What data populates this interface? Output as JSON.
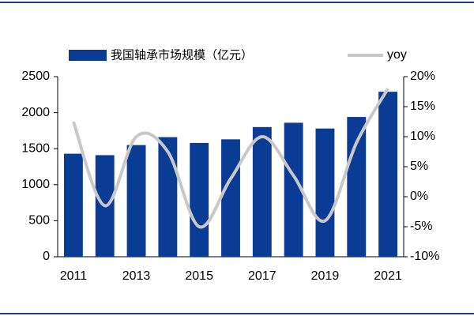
{
  "chart_data": {
    "type": "bar-line",
    "categories": [
      "2011",
      null,
      "2013",
      null,
      "2015",
      null,
      "2017",
      null,
      "2019",
      null,
      "2021"
    ],
    "series": [
      {
        "name": "我国轴承市场规模（亿元）",
        "type": "bar",
        "color": "#0a3c96",
        "values": [
          1430,
          1410,
          1550,
          1660,
          1580,
          1630,
          1800,
          1860,
          1780,
          1940,
          2290
        ]
      },
      {
        "name": "yoy",
        "type": "line",
        "axis": "y2",
        "color": "#c8c8c8",
        "values": [
          12.5,
          -1.5,
          10,
          7.5,
          -5,
          3,
          10,
          3.5,
          -4,
          9,
          18
        ]
      }
    ],
    "ylim": [
      0,
      2500
    ],
    "yticks": [
      0,
      500,
      1000,
      1500,
      2000,
      2500
    ],
    "y2lim": [
      -10,
      20
    ],
    "y2ticks": [
      {
        "value": -10,
        "label": "-10%"
      },
      {
        "value": -5,
        "label": "-5%"
      },
      {
        "value": 0,
        "label": "0%"
      },
      {
        "value": 5,
        "label": "5%"
      },
      {
        "value": 10,
        "label": "10%"
      },
      {
        "value": 15,
        "label": "15%"
      },
      {
        "value": 20,
        "label": "20%"
      }
    ]
  }
}
